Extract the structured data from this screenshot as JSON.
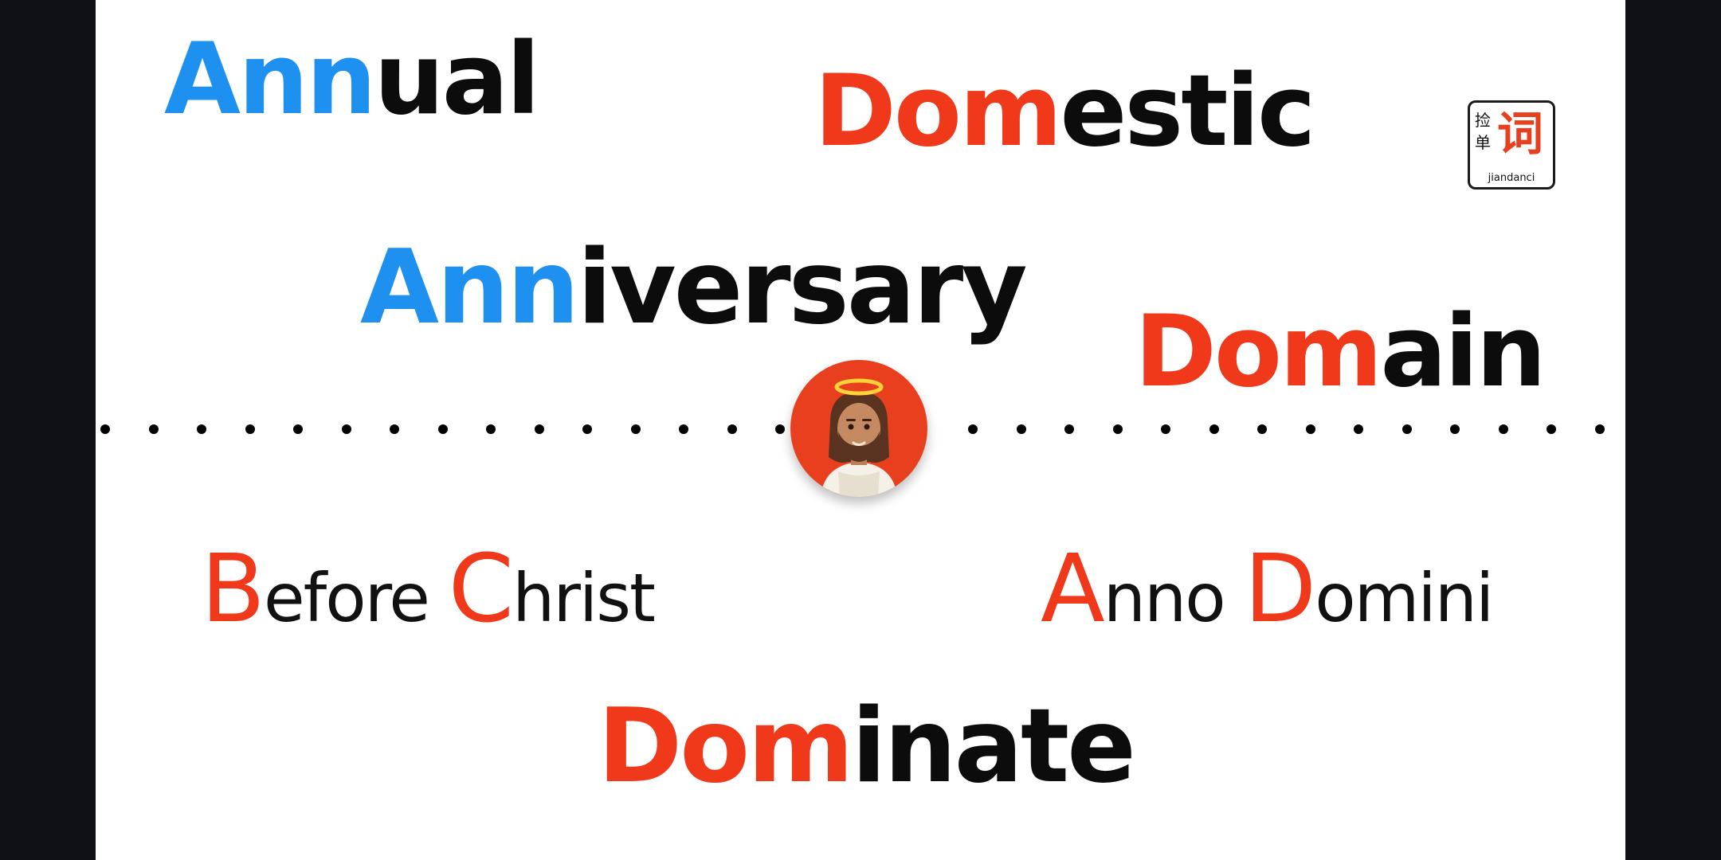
{
  "colors": {
    "blue": "#1e90f0",
    "red": "#f0381a",
    "black": "#0c0c0c"
  },
  "words": {
    "annual": {
      "highlight": "Ann",
      "rest": "ual"
    },
    "domestic": {
      "highlight": "Dom",
      "rest": "estic"
    },
    "anniversary": {
      "highlight": "Ann",
      "rest": "iversary"
    },
    "domain": {
      "highlight": "Dom",
      "rest": "ain"
    },
    "dominate": {
      "highlight": "Dom",
      "rest": "inate"
    }
  },
  "phrases": {
    "before_christ": {
      "cap1": "B",
      "rest1": "efore ",
      "cap2": "C",
      "rest2": "hrist"
    },
    "anno_domini": {
      "cap1": "A",
      "rest1": "nno ",
      "cap2": "D",
      "rest2": "omini"
    }
  },
  "logo": {
    "small_top": "捡",
    "small_bottom": "单",
    "big": "词",
    "romanization": "jiandanci"
  },
  "icons": {
    "avatar": "person-with-halo-icon"
  }
}
